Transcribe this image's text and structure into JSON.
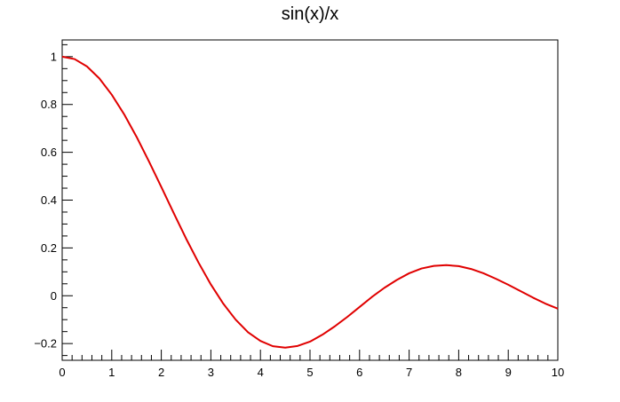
{
  "chart_data": {
    "type": "line",
    "title": "sin(x)/x",
    "xlabel": "",
    "ylabel": "",
    "xlim": [
      0,
      10
    ],
    "ylim": [
      -0.27,
      1.07
    ],
    "x_ticks": [
      0,
      1,
      2,
      3,
      4,
      5,
      6,
      7,
      8,
      9,
      10
    ],
    "x_tick_labels": [
      "0",
      "1",
      "2",
      "3",
      "4",
      "5",
      "6",
      "7",
      "8",
      "9",
      "10"
    ],
    "y_ticks": [
      -0.2,
      0,
      0.2,
      0.4,
      0.6,
      0.8,
      1
    ],
    "y_tick_labels": [
      "−0.2",
      "0",
      "0.2",
      "0.4",
      "0.6",
      "0.8",
      "1"
    ],
    "grid": false,
    "legend": "none",
    "series": [
      {
        "color": "#e00000",
        "x": [
          0,
          0.25,
          0.5,
          0.75,
          1,
          1.25,
          1.5,
          1.75,
          2,
          2.25,
          2.5,
          2.75,
          3,
          3.25,
          3.5,
          3.75,
          4,
          4.25,
          4.5,
          4.75,
          5,
          5.25,
          5.5,
          5.75,
          6,
          6.25,
          6.5,
          6.75,
          7,
          7.25,
          7.5,
          7.75,
          8,
          8.25,
          8.5,
          8.75,
          9,
          9.25,
          9.5,
          9.75,
          10
        ],
        "y": [
          1,
          0.99,
          0.959,
          0.909,
          0.841,
          0.759,
          0.665,
          0.562,
          0.455,
          0.346,
          0.239,
          0.139,
          0.047,
          -0.033,
          -0.1,
          -0.153,
          -0.189,
          -0.211,
          -0.217,
          -0.21,
          -0.192,
          -0.163,
          -0.128,
          -0.089,
          -0.047,
          -0.005,
          0.033,
          0.066,
          0.094,
          0.114,
          0.125,
          0.128,
          0.124,
          0.112,
          0.094,
          0.071,
          0.046,
          0.019,
          -0.008,
          -0.033,
          -0.054
        ]
      }
    ]
  }
}
